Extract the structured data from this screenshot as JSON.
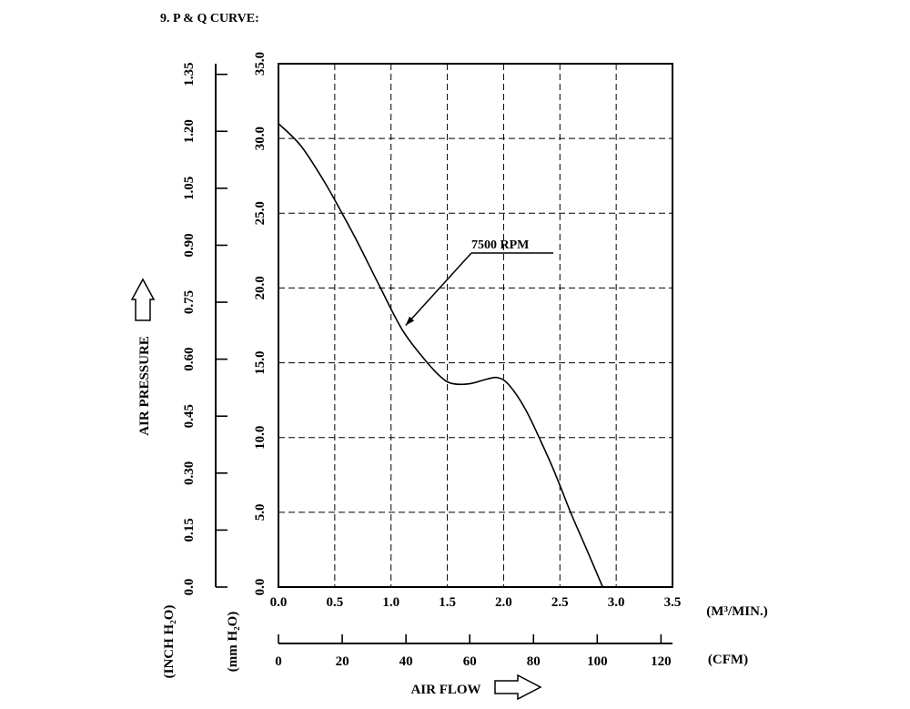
{
  "heading": "9. P & Q CURVE:",
  "chart_data": {
    "type": "line",
    "title": "P & Q CURVE",
    "xlabel": "AIR FLOW",
    "ylabel": "AIR PRESSURE",
    "x_unit_primary": "(M³/MIN.)",
    "x_unit_secondary": "(CFM)",
    "y_unit_primary": "(mm H₂O)",
    "y_unit_secondary": "(INCH H₂O)",
    "xlim": [
      0,
      3.5
    ],
    "ylim": [
      0,
      35
    ],
    "x_ticks": [
      "0.0",
      "0.5",
      "1.0",
      "1.5",
      "2.0",
      "2.5",
      "3.0",
      "3.5"
    ],
    "y_ticks": [
      "0.0",
      "5.0",
      "10.0",
      "15.0",
      "20.0",
      "25.0",
      "30.0",
      "35.0"
    ],
    "cfm_ticks": [
      "0",
      "20",
      "40",
      "60",
      "80",
      "100",
      "120"
    ],
    "cfm_range": [
      0,
      123.6
    ],
    "inch_ticks": [
      "0.0",
      "0.15",
      "0.30",
      "0.45",
      "0.60",
      "0.75",
      "0.90",
      "1.05",
      "1.20",
      "1.35"
    ],
    "inch_range": [
      0,
      1.378
    ],
    "grid": true,
    "series": [
      {
        "name": "7500 RPM",
        "x": [
          0.0,
          0.2,
          0.4,
          0.55,
          0.7,
          0.9,
          1.1,
          1.3,
          1.45,
          1.55,
          1.7,
          1.85,
          1.95,
          2.05,
          2.2,
          2.4,
          2.5,
          2.6,
          2.75,
          2.88
        ],
        "y": [
          31.0,
          29.5,
          27.2,
          25.2,
          23.1,
          20.1,
          17.2,
          15.2,
          14.0,
          13.6,
          13.6,
          13.9,
          14.0,
          13.5,
          11.8,
          8.6,
          6.8,
          4.9,
          2.3,
          0.0
        ]
      }
    ],
    "annotation": {
      "text": "7500 RPM",
      "target": [
        1.13,
        17.5
      ]
    }
  }
}
